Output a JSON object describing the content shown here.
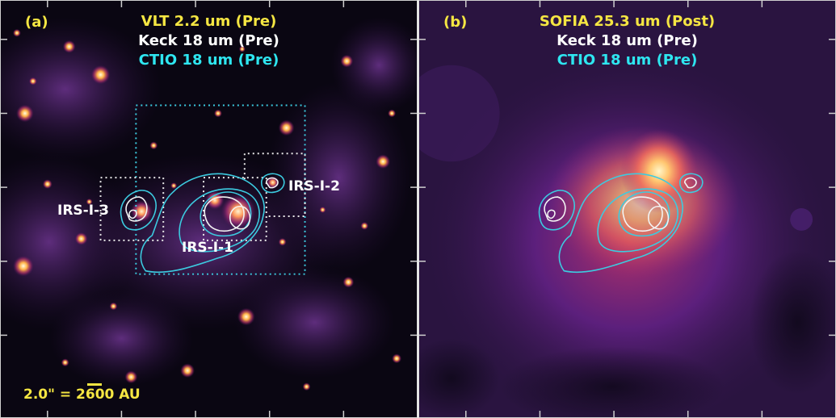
{
  "colors": {
    "yellow": "#f5e642",
    "white": "#ffffff",
    "cyan": "#2ee6f0",
    "contour_cyan": "#3ccbe0",
    "contour_white": "#f3f3f3",
    "bg_dark": "#0a0612",
    "bg_purple": "#2a1440"
  },
  "panel_a": {
    "letter": "(a)",
    "titles": [
      {
        "text": "VLT 2.2 um (Pre)",
        "color": "#f5e642"
      },
      {
        "text": "Keck 18 um (Pre)",
        "color": "#ffffff"
      },
      {
        "text": "CTIO 18 um (Pre)",
        "color": "#2ee6f0"
      }
    ],
    "sources": {
      "irs1": "IRS-I-1",
      "irs2": "IRS-I-2",
      "irs3": "IRS-I-3"
    },
    "scale_bar": "2.0\" = 2600 AU"
  },
  "panel_b": {
    "letter": "(b)",
    "titles": [
      {
        "text": "SOFIA 25.3 um (Post)",
        "color": "#f5e642"
      },
      {
        "text": "Keck 18 um (Pre)",
        "color": "#ffffff"
      },
      {
        "text": "CTIO 18 um (Pre)",
        "color": "#2ee6f0"
      }
    ]
  }
}
